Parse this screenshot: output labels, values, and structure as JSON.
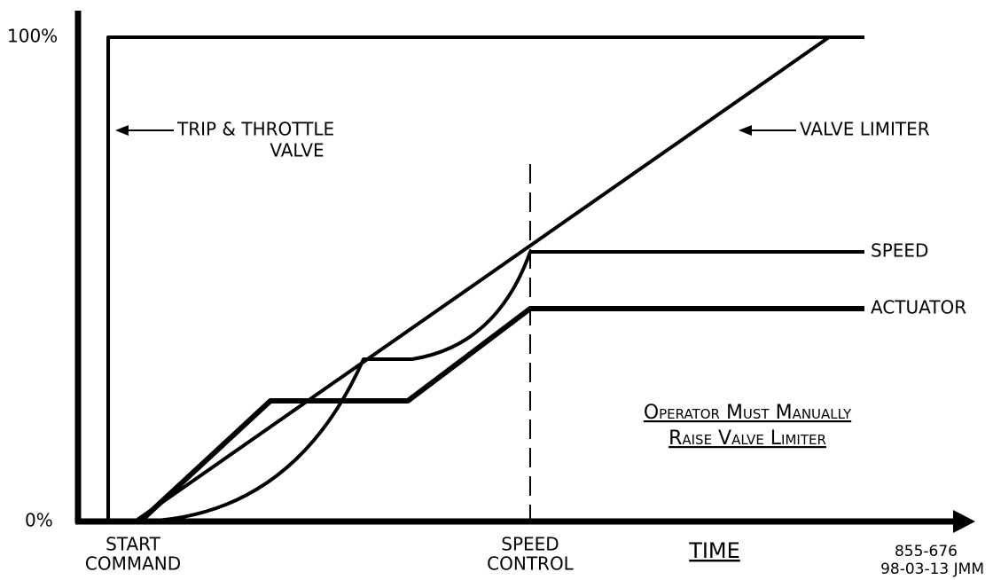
{
  "axis": {
    "top_label": "100%",
    "bottom_label": "0%",
    "x_label": "TIME"
  },
  "curves": {
    "trip_throttle": [
      "TRIP & THROTTLE",
      "VALVE"
    ],
    "valve_limiter": "VALVE LIMITER",
    "speed": "SPEED",
    "actuator": "ACTUATOR"
  },
  "markers": {
    "start": [
      "START",
      "COMMAND"
    ],
    "speed_control": [
      "SPEED",
      "CONTROL"
    ]
  },
  "note": [
    "Operator Must Manually",
    "Raise Valve Limiter"
  ],
  "drawing": {
    "number": "855-676",
    "date": "98-03-13 JMM"
  }
}
